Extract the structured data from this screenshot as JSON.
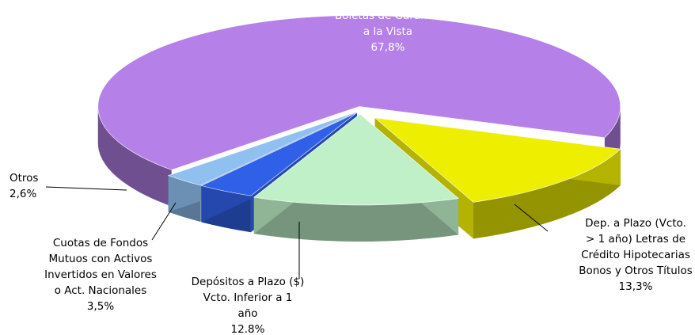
{
  "chart_data": {
    "type": "pie",
    "categories": [
      "Boletas de Garantía\na la Vista",
      "Dep. a Plazo (Vcto.\n> 1 año) Letras de\nCrédito Hipotecarias\nBonos y Otros Títulos",
      "Depósitos a Plazo ($)\nVcto. Inferior a 1\naño",
      "Cuotas de Fondos\nMutuos con Activos\nInvertidos en Valores\no Act. Nacionales",
      "Otros"
    ],
    "values": [
      67.8,
      13.3,
      12.8,
      3.5,
      2.6
    ],
    "value_labels": [
      "67,8%",
      "13,3%",
      "12.8%",
      "3,5%",
      "2,6%"
    ],
    "colors": [
      "#b580e8",
      "#eeee00",
      "#c0f0c8",
      "#3060e8",
      "#90c0f0"
    ]
  }
}
